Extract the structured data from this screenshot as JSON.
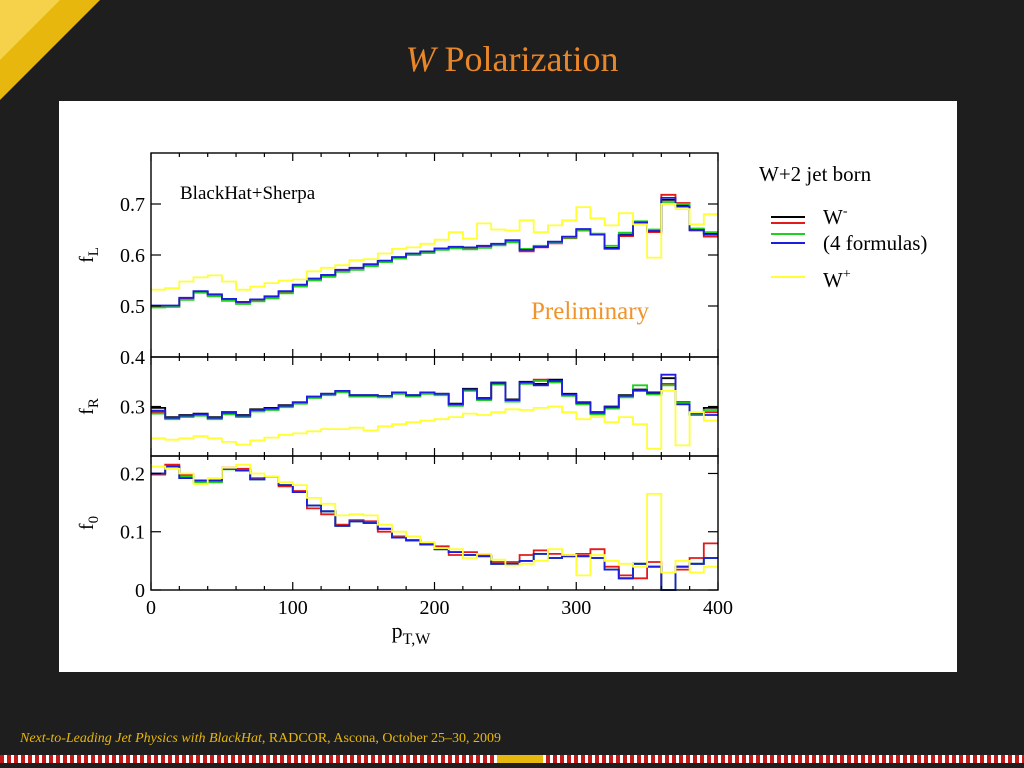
{
  "slide": {
    "title_italic": "W",
    "title_rest": "Polarization",
    "footer_italic": "Next-to-Leading Jet Physics with BlackHat",
    "footer_rest": ", RADCOR, Ascona, October 25–30, 2009"
  },
  "colors": {
    "black": "#000000",
    "red": "#e41a1a",
    "green": "#1fd11f",
    "blue": "#1d1de0",
    "yellow": "#ffff33",
    "orange": "#f0932b"
  },
  "chart_data": {
    "type": "line",
    "step": true,
    "xlabel": "p",
    "xlabel_sub": "T,W",
    "x_ticks": [
      0,
      100,
      200,
      300,
      400
    ],
    "xlim": [
      0,
      400
    ],
    "bin_width": 10,
    "annotation": "BlackHat+Sherpa",
    "watermark": "Preliminary",
    "legend": {
      "title": "W+2 jet born",
      "entries": [
        {
          "label": "W",
          "sup": "-"
        },
        {
          "label": "(4 formulas)",
          "sup": ""
        },
        {
          "label": "W",
          "sup": "+"
        }
      ]
    },
    "panels": [
      {
        "name": "fL",
        "ylabel": "f",
        "ylabel_sub": "L",
        "ylim": [
          0.4,
          0.8
        ],
        "y_ticks": [
          0.5,
          0.6,
          0.7
        ],
        "y_tick_labels": [
          "0.5",
          "0.6",
          "0.7"
        ],
        "series": [
          {
            "name": "W- black",
            "color": "#000000",
            "values": [
              0.5,
              0.5,
              0.515,
              0.528,
              0.522,
              0.513,
              0.507,
              0.512,
              0.518,
              0.528,
              0.541,
              0.553,
              0.56,
              0.57,
              0.574,
              0.581,
              0.588,
              0.595,
              0.602,
              0.606,
              0.612,
              0.615,
              0.614,
              0.617,
              0.621,
              0.628,
              0.611,
              0.617,
              0.625,
              0.635,
              0.65,
              0.641,
              0.614,
              0.64,
              0.665,
              0.648,
              0.708,
              0.697,
              0.65,
              0.642
            ]
          },
          {
            "name": "W- red",
            "color": "#e41a1a",
            "values": [
              0.498,
              0.499,
              0.513,
              0.527,
              0.52,
              0.511,
              0.505,
              0.51,
              0.516,
              0.526,
              0.539,
              0.551,
              0.558,
              0.568,
              0.572,
              0.579,
              0.587,
              0.594,
              0.601,
              0.605,
              0.611,
              0.614,
              0.612,
              0.615,
              0.62,
              0.626,
              0.607,
              0.615,
              0.623,
              0.633,
              0.648,
              0.64,
              0.612,
              0.637,
              0.662,
              0.645,
              0.718,
              0.702,
              0.648,
              0.636
            ]
          },
          {
            "name": "W- green",
            "color": "#1fd11f",
            "values": [
              0.497,
              0.498,
              0.512,
              0.526,
              0.519,
              0.51,
              0.504,
              0.509,
              0.515,
              0.525,
              0.538,
              0.55,
              0.557,
              0.567,
              0.571,
              0.578,
              0.586,
              0.593,
              0.6,
              0.604,
              0.61,
              0.613,
              0.611,
              0.614,
              0.619,
              0.625,
              0.612,
              0.618,
              0.624,
              0.634,
              0.649,
              0.642,
              0.618,
              0.644,
              0.666,
              0.65,
              0.704,
              0.7,
              0.652,
              0.645
            ]
          },
          {
            "name": "W- blue",
            "color": "#1d1de0",
            "values": [
              0.501,
              0.501,
              0.516,
              0.529,
              0.523,
              0.514,
              0.508,
              0.513,
              0.519,
              0.529,
              0.542,
              0.554,
              0.561,
              0.571,
              0.575,
              0.582,
              0.589,
              0.596,
              0.603,
              0.607,
              0.613,
              0.616,
              0.615,
              0.618,
              0.622,
              0.629,
              0.61,
              0.616,
              0.626,
              0.636,
              0.651,
              0.64,
              0.613,
              0.639,
              0.664,
              0.647,
              0.712,
              0.695,
              0.649,
              0.64
            ]
          },
          {
            "name": "W+ yellow",
            "color": "#ffff33",
            "values": [
              0.532,
              0.535,
              0.548,
              0.556,
              0.56,
              0.548,
              0.532,
              0.538,
              0.545,
              0.55,
              0.552,
              0.568,
              0.575,
              0.58,
              0.59,
              0.592,
              0.603,
              0.612,
              0.615,
              0.622,
              0.63,
              0.645,
              0.632,
              0.662,
              0.65,
              0.648,
              0.668,
              0.645,
              0.658,
              0.668,
              0.694,
              0.672,
              0.658,
              0.682,
              0.66,
              0.595,
              0.7,
              0.69,
              0.66,
              0.68
            ]
          }
        ]
      },
      {
        "name": "fR",
        "ylabel": "f",
        "ylabel_sub": "R",
        "ylim": [
          0.23,
          0.37
        ],
        "y_ticks": [
          0.3
        ],
        "y_tick_labels": [
          "0.3"
        ],
        "series": [
          {
            "name": "W- black",
            "color": "#000000",
            "values": [
              0.298,
              0.285,
              0.288,
              0.29,
              0.285,
              0.292,
              0.288,
              0.296,
              0.298,
              0.302,
              0.306,
              0.314,
              0.318,
              0.322,
              0.316,
              0.316,
              0.315,
              0.32,
              0.316,
              0.32,
              0.318,
              0.304,
              0.325,
              0.312,
              0.334,
              0.31,
              0.335,
              0.332,
              0.338,
              0.318,
              0.306,
              0.292,
              0.3,
              0.316,
              0.324,
              0.32,
              0.34,
              0.306,
              0.29,
              0.298
            ]
          },
          {
            "name": "W- red",
            "color": "#e41a1a",
            "values": [
              0.292,
              0.283,
              0.286,
              0.288,
              0.283,
              0.29,
              0.286,
              0.294,
              0.296,
              0.3,
              0.305,
              0.313,
              0.317,
              0.321,
              0.315,
              0.315,
              0.314,
              0.319,
              0.315,
              0.319,
              0.317,
              0.302,
              0.323,
              0.31,
              0.332,
              0.308,
              0.333,
              0.338,
              0.335,
              0.316,
              0.304,
              0.29,
              0.298,
              0.314,
              0.322,
              0.318,
              0.332,
              0.304,
              0.288,
              0.292
            ]
          },
          {
            "name": "W- green",
            "color": "#1fd11f",
            "values": [
              0.29,
              0.282,
              0.285,
              0.287,
              0.282,
              0.289,
              0.285,
              0.293,
              0.295,
              0.299,
              0.304,
              0.312,
              0.316,
              0.32,
              0.314,
              0.314,
              0.313,
              0.318,
              0.314,
              0.318,
              0.316,
              0.301,
              0.322,
              0.309,
              0.331,
              0.307,
              0.332,
              0.336,
              0.334,
              0.315,
              0.303,
              0.289,
              0.297,
              0.313,
              0.33,
              0.317,
              0.33,
              0.305,
              0.289,
              0.295
            ]
          },
          {
            "name": "W- blue",
            "color": "#1d1de0",
            "values": [
              0.294,
              0.284,
              0.287,
              0.289,
              0.284,
              0.291,
              0.287,
              0.295,
              0.297,
              0.301,
              0.306,
              0.314,
              0.318,
              0.322,
              0.316,
              0.316,
              0.315,
              0.32,
              0.316,
              0.32,
              0.318,
              0.303,
              0.324,
              0.311,
              0.333,
              0.309,
              0.334,
              0.33,
              0.336,
              0.317,
              0.305,
              0.291,
              0.299,
              0.315,
              0.323,
              0.319,
              0.345,
              0.303,
              0.29,
              0.288
            ]
          },
          {
            "name": "W+ yellow",
            "color": "#ffff33",
            "values": [
              0.255,
              0.253,
              0.255,
              0.258,
              0.255,
              0.25,
              0.246,
              0.252,
              0.256,
              0.26,
              0.262,
              0.265,
              0.268,
              0.268,
              0.27,
              0.266,
              0.272,
              0.275,
              0.278,
              0.28,
              0.282,
              0.285,
              0.29,
              0.288,
              0.292,
              0.296,
              0.295,
              0.298,
              0.3,
              0.292,
              0.282,
              0.285,
              0.278,
              0.285,
              0.275,
              0.24,
              0.322,
              0.245,
              0.292,
              0.28
            ]
          }
        ]
      },
      {
        "name": "f0",
        "ylabel": "f",
        "ylabel_sub": "0",
        "ylim": [
          0,
          0.23
        ],
        "y_ticks": [
          0,
          0.1,
          0.2
        ],
        "y_tick_labels": [
          "0",
          "0.1",
          "0.2"
        ],
        "series": [
          {
            "name": "W- black",
            "color": "#000000",
            "values": [
              0.2,
              0.212,
              0.192,
              0.188,
              0.188,
              0.208,
              0.205,
              0.19,
              0.195,
              0.18,
              0.168,
              0.145,
              0.135,
              0.11,
              0.118,
              0.115,
              0.105,
              0.09,
              0.085,
              0.078,
              0.07,
              0.065,
              0.06,
              0.058,
              0.045,
              0.045,
              0.05,
              0.062,
              0.055,
              0.058,
              0.058,
              0.055,
              0.035,
              0.02,
              0.045,
              0.04,
              0.0,
              0.04,
              0.045,
              0.055
            ]
          },
          {
            "name": "W- red",
            "color": "#e41a1a",
            "values": [
              0.198,
              0.215,
              0.198,
              0.188,
              0.185,
              0.21,
              0.208,
              0.192,
              0.195,
              0.178,
              0.17,
              0.14,
              0.13,
              0.112,
              0.12,
              0.118,
              0.1,
              0.092,
              0.086,
              0.08,
              0.075,
              0.06,
              0.065,
              0.06,
              0.048,
              0.048,
              0.06,
              0.068,
              0.062,
              0.06,
              0.062,
              0.07,
              0.04,
              0.025,
              0.02,
              0.048,
              0.0,
              0.035,
              0.055,
              0.08
            ]
          },
          {
            "name": "W- green",
            "color": "#1fd11f",
            "values": [
              0.2,
              0.212,
              0.195,
              0.185,
              0.185,
              0.207,
              0.205,
              0.19,
              0.195,
              0.18,
              0.168,
              0.145,
              0.135,
              0.11,
              0.118,
              0.115,
              0.105,
              0.09,
              0.085,
              0.078,
              0.07,
              0.065,
              0.06,
              0.058,
              0.045,
              0.045,
              0.05,
              0.062,
              0.055,
              0.058,
              0.058,
              0.055,
              0.035,
              0.02,
              0.045,
              0.04,
              0.0,
              0.04,
              0.045,
              0.055
            ]
          },
          {
            "name": "W- blue",
            "color": "#1d1de0",
            "values": [
              0.2,
              0.212,
              0.192,
              0.188,
              0.188,
              0.208,
              0.205,
              0.19,
              0.195,
              0.18,
              0.168,
              0.145,
              0.135,
              0.11,
              0.118,
              0.115,
              0.105,
              0.09,
              0.085,
              0.078,
              0.07,
              0.065,
              0.06,
              0.058,
              0.045,
              0.045,
              0.05,
              0.062,
              0.055,
              0.058,
              0.058,
              0.055,
              0.035,
              0.02,
              0.045,
              0.04,
              0.0,
              0.04,
              0.045,
              0.055
            ]
          },
          {
            "name": "W+ yellow",
            "color": "#ffff33",
            "values": [
              0.212,
              0.208,
              0.2,
              0.182,
              0.192,
              0.21,
              0.215,
              0.2,
              0.195,
              0.185,
              0.18,
              0.158,
              0.148,
              0.128,
              0.13,
              0.128,
              0.112,
              0.1,
              0.092,
              0.082,
              0.072,
              0.07,
              0.055,
              0.062,
              0.052,
              0.042,
              0.045,
              0.05,
              0.07,
              0.06,
              0.025,
              0.06,
              0.05,
              0.045,
              0.04,
              0.165,
              0.03,
              0.05,
              0.03,
              0.04
            ]
          }
        ]
      }
    ]
  }
}
